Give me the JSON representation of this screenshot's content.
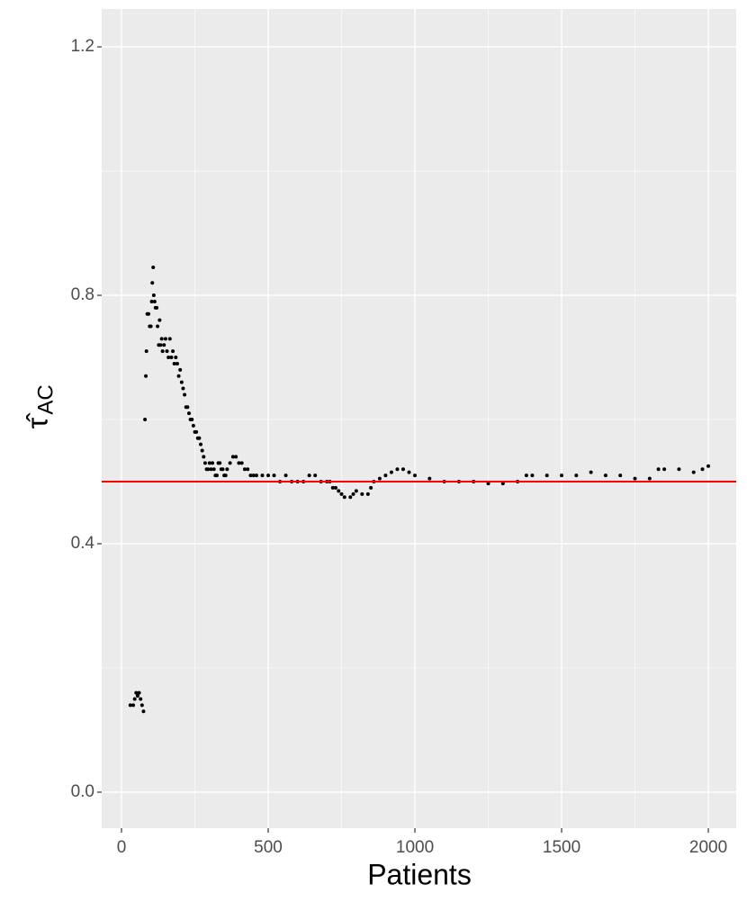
{
  "chart_data": {
    "type": "scatter",
    "xlabel": "Patients",
    "ylabel": "τ̂",
    "ylabel_subscript": "AC",
    "x": [
      30,
      40,
      45,
      50,
      55,
      60,
      65,
      70,
      75,
      80,
      83,
      85,
      88,
      92,
      96,
      100,
      103,
      105,
      108,
      110,
      113,
      116,
      120,
      123,
      127,
      130,
      133,
      137,
      140,
      145,
      150,
      155,
      160,
      165,
      170,
      175,
      180,
      185,
      190,
      195,
      200,
      205,
      210,
      215,
      220,
      225,
      230,
      235,
      240,
      245,
      250,
      255,
      260,
      265,
      270,
      275,
      280,
      285,
      290,
      295,
      300,
      305,
      310,
      315,
      320,
      325,
      330,
      335,
      340,
      345,
      350,
      355,
      360,
      370,
      380,
      390,
      400,
      410,
      420,
      430,
      440,
      450,
      460,
      480,
      500,
      520,
      540,
      560,
      580,
      600,
      620,
      640,
      660,
      680,
      700,
      710,
      720,
      730,
      740,
      750,
      760,
      780,
      790,
      800,
      820,
      840,
      850,
      860,
      880,
      900,
      920,
      940,
      960,
      980,
      1000,
      1050,
      1100,
      1150,
      1200,
      1250,
      1300,
      1350,
      1380,
      1400,
      1450,
      1500,
      1550,
      1600,
      1650,
      1700,
      1750,
      1800,
      1830,
      1850,
      1900,
      1950,
      1980,
      2000
    ],
    "y": [
      0.14,
      0.14,
      0.15,
      0.16,
      0.155,
      0.16,
      0.15,
      0.14,
      0.13,
      0.6,
      0.67,
      0.71,
      0.77,
      0.77,
      0.75,
      0.75,
      0.79,
      0.82,
      0.845,
      0.8,
      0.79,
      0.78,
      0.78,
      0.75,
      0.72,
      0.76,
      0.72,
      0.73,
      0.71,
      0.72,
      0.73,
      0.71,
      0.7,
      0.73,
      0.7,
      0.71,
      0.69,
      0.7,
      0.69,
      0.67,
      0.68,
      0.66,
      0.65,
      0.64,
      0.62,
      0.62,
      0.61,
      0.6,
      0.6,
      0.59,
      0.58,
      0.58,
      0.57,
      0.57,
      0.56,
      0.55,
      0.54,
      0.53,
      0.52,
      0.52,
      0.53,
      0.52,
      0.53,
      0.52,
      0.51,
      0.51,
      0.53,
      0.53,
      0.52,
      0.52,
      0.51,
      0.51,
      0.52,
      0.53,
      0.54,
      0.54,
      0.53,
      0.53,
      0.52,
      0.52,
      0.51,
      0.51,
      0.51,
      0.51,
      0.51,
      0.51,
      0.5,
      0.51,
      0.5,
      0.5,
      0.5,
      0.51,
      0.51,
      0.5,
      0.5,
      0.5,
      0.49,
      0.49,
      0.485,
      0.48,
      0.475,
      0.475,
      0.48,
      0.485,
      0.48,
      0.48,
      0.49,
      0.5,
      0.505,
      0.51,
      0.515,
      0.52,
      0.52,
      0.515,
      0.51,
      0.505,
      0.5,
      0.5,
      0.5,
      0.497,
      0.497,
      0.5,
      0.51,
      0.51,
      0.51,
      0.51,
      0.51,
      0.515,
      0.51,
      0.51,
      0.505,
      0.505,
      0.52,
      0.52,
      0.52,
      0.515,
      0.52,
      0.525
    ],
    "color": "#000000",
    "hline": 0.5,
    "hline_color": "#ff0000",
    "xlim": [
      -67.5,
      2095
    ],
    "ylim": [
      -0.058,
      1.261
    ],
    "xticks": [
      0,
      500,
      1000,
      1500,
      2000
    ],
    "yticks": [
      {
        "value": 0,
        "label": "0.0"
      },
      0.4,
      0.8,
      1.2
    ],
    "xminor": [
      250,
      750,
      1250,
      1750
    ],
    "yminor": [
      0.2,
      0.6,
      1.0
    ],
    "grid": true
  }
}
